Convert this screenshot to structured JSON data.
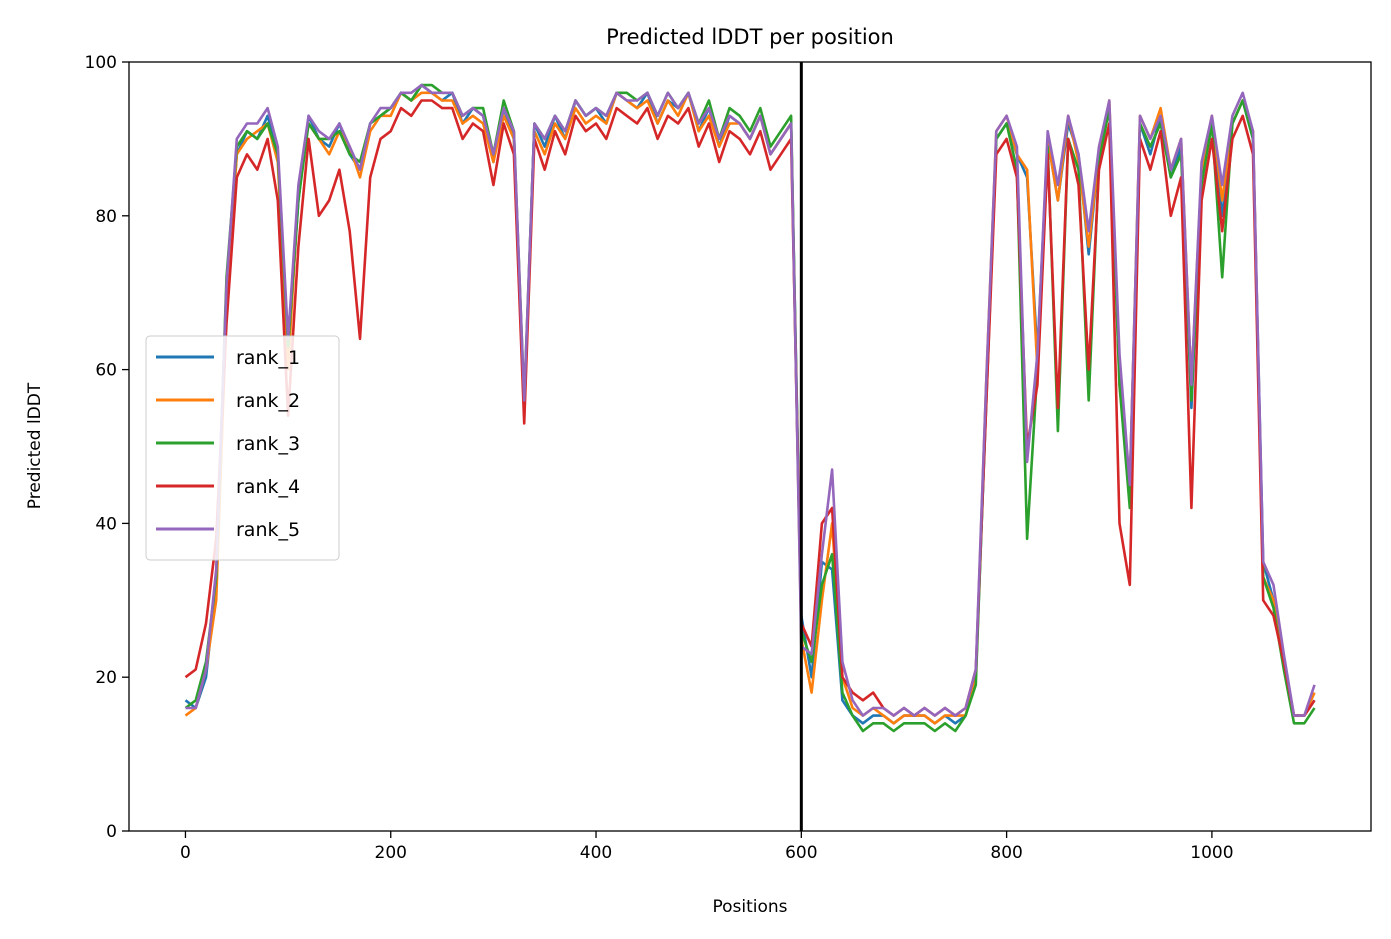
{
  "chart_data": {
    "type": "line",
    "title": "Predicted lDDT per position",
    "xlabel": "Positions",
    "ylabel": "Predicted lDDT",
    "xlim": [
      -55,
      1155
    ],
    "ylim": [
      0,
      100
    ],
    "xticks": [
      0,
      200,
      400,
      600,
      800,
      1000
    ],
    "yticks": [
      0,
      20,
      40,
      60,
      80,
      100
    ],
    "xtick_labels": [
      "0",
      "200",
      "400",
      "600",
      "800",
      "1000"
    ],
    "ytick_labels": [
      "0",
      "20",
      "40",
      "60",
      "80",
      "100"
    ],
    "grid": false,
    "legend_position": "center-left",
    "vline_x": 600,
    "x": [
      0,
      10,
      20,
      30,
      40,
      50,
      60,
      70,
      80,
      90,
      100,
      110,
      120,
      130,
      140,
      150,
      160,
      170,
      180,
      190,
      200,
      210,
      220,
      230,
      240,
      250,
      260,
      270,
      280,
      290,
      300,
      310,
      320,
      330,
      340,
      350,
      360,
      370,
      380,
      390,
      400,
      410,
      420,
      430,
      440,
      450,
      460,
      470,
      480,
      490,
      500,
      510,
      520,
      530,
      540,
      550,
      560,
      570,
      580,
      590,
      600,
      610,
      620,
      630,
      640,
      650,
      660,
      670,
      680,
      690,
      700,
      710,
      720,
      730,
      740,
      750,
      760,
      770,
      780,
      790,
      800,
      810,
      820,
      830,
      840,
      850,
      860,
      870,
      880,
      890,
      900,
      910,
      920,
      930,
      940,
      950,
      960,
      970,
      980,
      990,
      1000,
      1010,
      1020,
      1030,
      1040,
      1050,
      1060,
      1070,
      1080,
      1090,
      1100
    ],
    "series": [
      {
        "name": "rank_1",
        "color": "#1f77b4",
        "values": [
          17,
          16,
          20,
          32,
          70,
          88,
          91,
          90,
          93,
          88,
          62,
          82,
          93,
          90,
          89,
          92,
          88,
          86,
          92,
          93,
          94,
          96,
          95,
          97,
          96,
          95,
          96,
          92,
          94,
          93,
          87,
          94,
          90,
          55,
          92,
          89,
          93,
          90,
          95,
          93,
          94,
          92,
          96,
          95,
          94,
          96,
          92,
          95,
          94,
          96,
          91,
          94,
          89,
          93,
          92,
          90,
          93,
          88,
          90,
          92,
          28,
          20,
          35,
          34,
          17,
          15,
          14,
          15,
          15,
          14,
          15,
          15,
          15,
          14,
          15,
          14,
          15,
          20,
          55,
          90,
          92,
          88,
          85,
          62,
          90,
          82,
          92,
          88,
          75,
          88,
          94,
          60,
          45,
          92,
          88,
          93,
          85,
          89,
          55,
          85,
          92,
          80,
          92,
          95,
          90,
          35,
          30,
          22,
          15,
          15,
          17
        ]
      },
      {
        "name": "rank_2",
        "color": "#ff7f0e",
        "values": [
          15,
          16,
          21,
          30,
          68,
          88,
          90,
          91,
          92,
          87,
          60,
          83,
          92,
          90,
          88,
          91,
          89,
          85,
          91,
          93,
          93,
          96,
          95,
          96,
          96,
          95,
          95,
          92,
          93,
          92,
          87,
          93,
          90,
          54,
          91,
          88,
          92,
          90,
          94,
          92,
          93,
          92,
          96,
          95,
          94,
          95,
          92,
          95,
          93,
          96,
          91,
          93,
          89,
          92,
          92,
          90,
          93,
          88,
          90,
          92,
          25,
          18,
          30,
          40,
          20,
          16,
          15,
          16,
          15,
          14,
          15,
          15,
          15,
          14,
          15,
          15,
          15,
          20,
          58,
          91,
          93,
          88,
          86,
          60,
          90,
          82,
          93,
          87,
          76,
          88,
          95,
          58,
          45,
          93,
          90,
          94,
          86,
          90,
          58,
          86,
          93,
          82,
          92,
          95,
          91,
          33,
          30,
          22,
          15,
          15,
          18
        ]
      },
      {
        "name": "rank_3",
        "color": "#2ca02c",
        "values": [
          16,
          17,
          22,
          33,
          72,
          89,
          91,
          90,
          92,
          88,
          63,
          82,
          92,
          90,
          90,
          91,
          88,
          87,
          92,
          93,
          94,
          96,
          95,
          97,
          97,
          96,
          96,
          93,
          94,
          94,
          88,
          95,
          91,
          56,
          92,
          90,
          93,
          91,
          95,
          93,
          94,
          93,
          96,
          96,
          95,
          96,
          93,
          96,
          94,
          96,
          92,
          95,
          90,
          94,
          93,
          91,
          94,
          89,
          91,
          93,
          26,
          22,
          32,
          36,
          18,
          15,
          13,
          14,
          14,
          13,
          14,
          14,
          14,
          13,
          14,
          13,
          15,
          19,
          56,
          90,
          92,
          86,
          38,
          60,
          89,
          52,
          90,
          86,
          56,
          87,
          94,
          58,
          42,
          92,
          89,
          92,
          85,
          88,
          56,
          84,
          92,
          72,
          92,
          95,
          90,
          33,
          29,
          21,
          14,
          14,
          16
        ]
      },
      {
        "name": "rank_4",
        "color": "#d62728",
        "values": [
          20,
          21,
          27,
          38,
          66,
          85,
          88,
          86,
          90,
          82,
          54,
          76,
          90,
          80,
          82,
          86,
          78,
          64,
          85,
          90,
          91,
          94,
          93,
          95,
          95,
          94,
          94,
          90,
          92,
          91,
          84,
          92,
          88,
          53,
          90,
          86,
          91,
          88,
          93,
          91,
          92,
          90,
          94,
          93,
          92,
          94,
          90,
          93,
          92,
          94,
          89,
          92,
          87,
          91,
          90,
          88,
          91,
          86,
          88,
          90,
          27,
          24,
          40,
          42,
          20,
          18,
          17,
          18,
          16,
          15,
          16,
          15,
          16,
          15,
          16,
          15,
          16,
          21,
          55,
          88,
          90,
          85,
          50,
          58,
          88,
          55,
          90,
          84,
          60,
          86,
          92,
          40,
          32,
          90,
          86,
          91,
          80,
          85,
          42,
          82,
          90,
          78,
          90,
          93,
          88,
          30,
          28,
          22,
          15,
          15,
          17
        ]
      },
      {
        "name": "rank_5",
        "color": "#9467bd",
        "values": [
          16,
          16,
          21,
          34,
          71,
          90,
          92,
          92,
          94,
          89,
          64,
          84,
          93,
          91,
          90,
          92,
          89,
          86,
          92,
          94,
          94,
          96,
          96,
          97,
          96,
          96,
          96,
          93,
          94,
          93,
          88,
          94,
          91,
          56,
          92,
          90,
          93,
          91,
          95,
          93,
          94,
          93,
          96,
          95,
          95,
          96,
          93,
          96,
          94,
          96,
          92,
          94,
          90,
          93,
          92,
          90,
          93,
          88,
          90,
          92,
          24,
          23,
          36,
          47,
          22,
          17,
          15,
          16,
          16,
          15,
          16,
          15,
          16,
          15,
          16,
          15,
          16,
          21,
          58,
          91,
          93,
          89,
          48,
          62,
          91,
          84,
          93,
          88,
          78,
          89,
          95,
          62,
          45,
          93,
          90,
          93,
          86,
          90,
          58,
          87,
          93,
          84,
          93,
          96,
          91,
          35,
          32,
          23,
          15,
          15,
          19
        ]
      }
    ]
  }
}
